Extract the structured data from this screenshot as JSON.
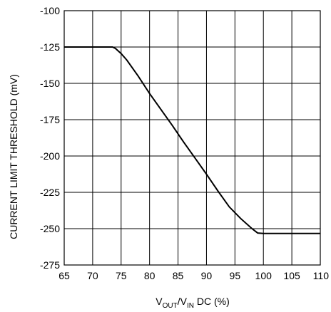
{
  "chart_data": {
    "type": "line",
    "xlabel": {
      "main": "V",
      "sub1": "OUT",
      "mid": "/V",
      "sub2": "IN",
      "tail": " DC (%)"
    },
    "ylabel": "CURRENT LIMIT THRESHOLD (mV)",
    "xlim": [
      65,
      110
    ],
    "ylim": [
      -275,
      -100
    ],
    "x_ticks": [
      65,
      70,
      75,
      80,
      85,
      90,
      95,
      100,
      105,
      110
    ],
    "y_ticks": [
      -100,
      -125,
      -150,
      -175,
      -200,
      -225,
      -250,
      -275
    ],
    "x_tick_labels": [
      "65",
      "70",
      "75",
      "80",
      "85",
      "90",
      "95",
      "100",
      "105",
      "110"
    ],
    "y_tick_labels": [
      "-100",
      "-125",
      "-150",
      "-175",
      "-200",
      "-225",
      "-250",
      "-275"
    ],
    "grid": true,
    "series": [
      {
        "color": "#000000",
        "x": [
          65,
          73.5,
          74,
          75,
          76,
          78,
          80,
          82,
          84,
          86,
          88,
          90,
          92,
          94,
          96,
          98,
          99,
          100,
          105,
          110
        ],
        "y": [
          -125,
          -125,
          -126,
          -129.5,
          -134,
          -145,
          -157,
          -168,
          -179,
          -190.5,
          -201.5,
          -212.5,
          -224,
          -235,
          -243,
          -250,
          -253,
          -253.3,
          -253.3,
          -253.3
        ]
      }
    ]
  }
}
